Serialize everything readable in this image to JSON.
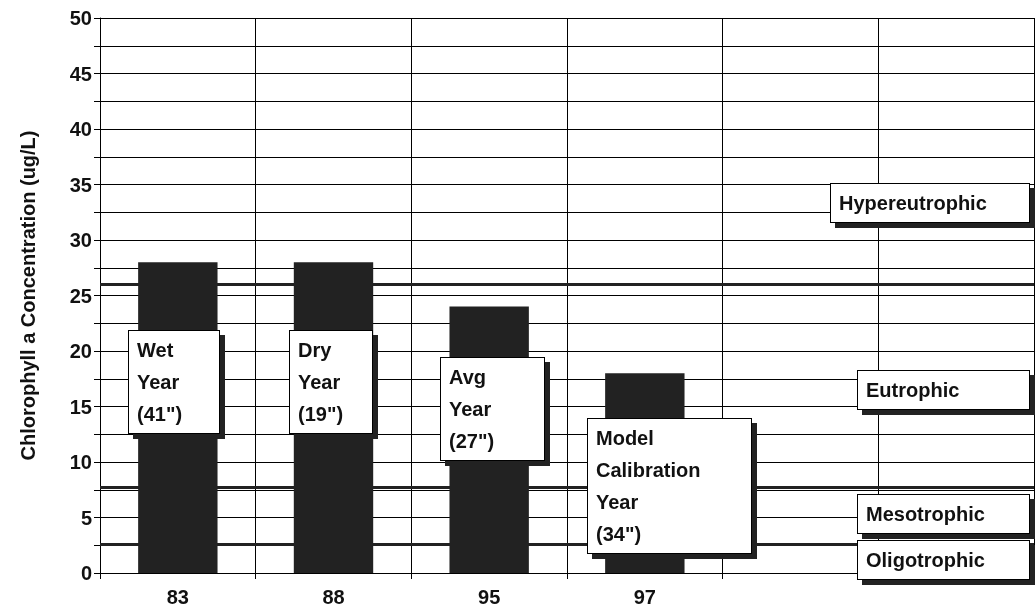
{
  "chart_data": {
    "type": "bar",
    "ylabel": "Chlorophyll a Concentration (ug/L)",
    "categories": [
      "83",
      "88",
      "95",
      "97",
      null,
      null
    ],
    "values": [
      28,
      28,
      24,
      18,
      null,
      null
    ],
    "color": "#222222",
    "ylim": [
      0,
      50
    ],
    "yticks": [
      0,
      {
        "value": 2.5,
        "label": null
      },
      5,
      {
        "value": 7.5,
        "label": null
      },
      10,
      {
        "value": 12.5,
        "label": null
      },
      15,
      {
        "value": 17.5,
        "label": null
      },
      20,
      {
        "value": 22.5,
        "label": null
      },
      25,
      {
        "value": 27.5,
        "label": null
      },
      30,
      {
        "value": 32.5,
        "label": null
      },
      35,
      {
        "value": 37.5,
        "label": null
      },
      40,
      {
        "value": 42.5,
        "label": null
      },
      45,
      {
        "value": 47.5,
        "label": null
      },
      50
    ],
    "grid": true,
    "ref_lines": [
      {
        "axis": "y",
        "value": 26,
        "color": "#222222"
      },
      {
        "axis": "y",
        "value": 7.7,
        "color": "#222222"
      },
      {
        "axis": "y",
        "value": 2.6,
        "color": "#222222"
      }
    ],
    "annotations": [
      "Wet Year (41\")",
      "Dry Year (19\")",
      "Avg Year (27\")",
      "Model Calibration Year (34\")",
      "Hypereutrophic",
      "Eutrophic",
      "Mesotrophic",
      "Oligotrophic"
    ]
  }
}
